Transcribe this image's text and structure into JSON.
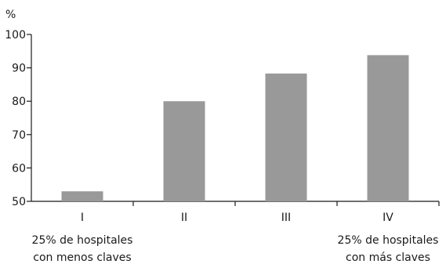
{
  "chart_data": {
    "type": "bar",
    "unit_label": "%",
    "categories": [
      "I",
      "II",
      "III",
      "IV"
    ],
    "values": [
      53,
      80,
      88.3,
      93.8
    ],
    "ylim": [
      50,
      100
    ],
    "yticks": [
      50,
      60,
      70,
      80,
      90,
      100
    ],
    "grid": false,
    "legend": "none",
    "bar_color": "#999999",
    "annotations": [
      {
        "category": "I",
        "lines": [
          "25% de hospitales",
          "con menos claves"
        ]
      },
      {
        "category": "IV",
        "lines": [
          "25% de hospitales",
          "con más claves"
        ]
      }
    ]
  }
}
